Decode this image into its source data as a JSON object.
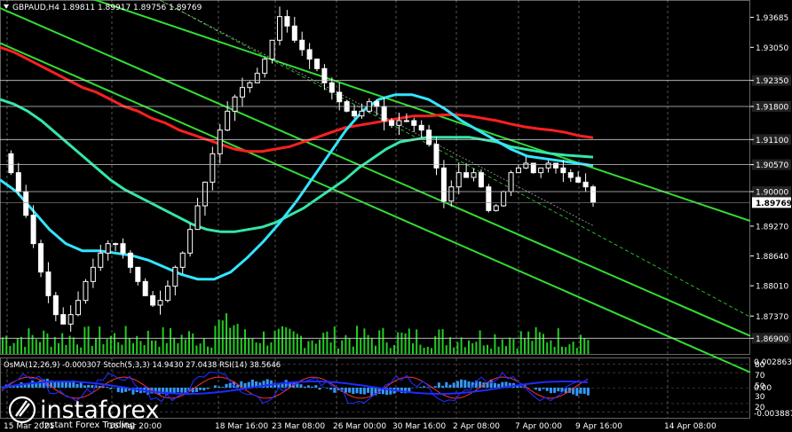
{
  "header": {
    "symbol_line": "GBPAUD,H4  1.89811 1.89917 1.89756 1.89769",
    "indicator_line": "OsMA(12,26,9) -0.000307  Stoch(5,3,3) 14.9430 27.0438  RSI(14) 38.5646"
  },
  "logo": {
    "brand": "instaforex",
    "tagline": "Instant Forex Trading"
  },
  "colors": {
    "background": "#000000",
    "candles": "#ffffff",
    "ema_slow": "#ff2020",
    "ema_mid": "#33e6a8",
    "ema_fast": "#33e6ff",
    "channel": "#33dd33",
    "volume": "#22cc22",
    "osma": "#3399ff",
    "stoch_main": "#1e2bff",
    "stoch_signal": "#ff3030",
    "rsi": "#ffffff",
    "grid": "#ffffff"
  },
  "chart_data": {
    "type": "line",
    "symbol": "GBPAUD",
    "timeframe": "H4",
    "ohlc": {
      "open": 1.89811,
      "high": 1.89917,
      "low": 1.89756,
      "close": 1.89769
    },
    "ylim": [
      1.8655,
      1.9405
    ],
    "y_ticks": [
      "1.93685",
      "1.93050",
      "1.92350",
      "1.91800",
      "1.91100",
      "1.90570",
      "1.90000",
      "1.89769",
      "1.89270",
      "1.88640",
      "1.88010",
      "1.87370",
      "1.86900"
    ],
    "highlighted_levels": [
      1.9235,
      1.918,
      1.911,
      1.9057,
      1.9,
      1.869
    ],
    "current_price": "1.89769",
    "x_tick_labels": [
      "15 Mar 2021",
      "16 Mar 20:00",
      "18 Mar 16:00",
      "23 Mar 08:00",
      "26 Mar 00:00",
      "30 Mar 16:00",
      "2 Apr 08:00",
      "7 Apr 00:00",
      "9 Apr 16:00",
      "14 Apr 08:00"
    ],
    "series": [
      {
        "name": "close",
        "values": [
          1.908,
          1.904,
          1.9,
          1.895,
          1.889,
          1.883,
          1.878,
          1.874,
          1.872,
          1.874,
          1.877,
          1.881,
          1.884,
          1.887,
          1.889,
          1.889,
          1.887,
          1.884,
          1.881,
          1.878,
          1.876,
          1.877,
          1.88,
          1.884,
          1.887,
          1.892,
          1.897,
          1.902,
          1.908,
          1.913,
          1.917,
          1.92,
          1.922,
          1.923,
          1.925,
          1.928,
          1.932,
          1.937,
          1.935,
          1.932,
          1.93,
          1.928,
          1.926,
          1.923,
          1.921,
          1.919,
          1.917,
          1.916,
          1.917,
          1.919,
          1.918,
          1.915,
          1.914,
          1.915,
          1.915,
          1.914,
          1.913,
          1.91,
          1.905,
          1.898,
          1.901,
          1.904,
          1.903,
          1.904,
          1.901,
          1.896,
          1.897,
          1.9,
          1.904,
          1.905,
          1.906,
          1.904,
          1.905,
          1.906,
          1.905,
          1.904,
          1.903,
          1.902,
          1.901,
          1.8977
        ]
      },
      {
        "name": "ema_slow",
        "values": [
          1.9305,
          1.9295,
          1.928,
          1.9265,
          1.925,
          1.9235,
          1.922,
          1.921,
          1.9195,
          1.918,
          1.917,
          1.9155,
          1.9145,
          1.913,
          1.912,
          1.911,
          1.91,
          1.909,
          1.9085,
          1.9085,
          1.909,
          1.9095,
          1.9105,
          1.9115,
          1.9125,
          1.9135,
          1.914,
          1.9145,
          1.915,
          1.9155,
          1.916,
          1.916,
          1.9162,
          1.9163,
          1.916,
          1.9155,
          1.915,
          1.9143,
          1.9137,
          1.9133,
          1.913,
          1.9125,
          1.9118,
          1.9114
        ]
      },
      {
        "name": "ema_mid",
        "values": [
          1.9195,
          1.9185,
          1.917,
          1.915,
          1.9125,
          1.91,
          1.9075,
          1.905,
          1.9025,
          1.9005,
          1.899,
          1.8975,
          1.896,
          1.8945,
          1.893,
          1.892,
          1.8915,
          1.8915,
          1.892,
          1.8925,
          1.8935,
          1.895,
          1.8965,
          1.8985,
          1.9005,
          1.9025,
          1.905,
          1.907,
          1.909,
          1.9105,
          1.911,
          1.9115,
          1.9115,
          1.9115,
          1.9115,
          1.911,
          1.9105,
          1.9095,
          1.909,
          1.9085,
          1.908,
          1.9077,
          1.9075,
          1.9073
        ]
      },
      {
        "name": "ema_fast",
        "values": [
          1.9025,
          1.9,
          1.896,
          1.892,
          1.889,
          1.8875,
          1.8875,
          1.887,
          1.8865,
          1.8855,
          1.884,
          1.8825,
          1.8815,
          1.8815,
          1.883,
          1.886,
          1.8895,
          1.8935,
          1.898,
          1.903,
          1.908,
          1.913,
          1.917,
          1.9195,
          1.9205,
          1.9205,
          1.9195,
          1.9175,
          1.915,
          1.913,
          1.911,
          1.909,
          1.9075,
          1.907,
          1.9065,
          1.906,
          1.9055
        ]
      }
    ],
    "channel_lines": [
      {
        "name": "upper",
        "from": [
          "left",
          1.9473
        ],
        "to": [
          "right",
          1.8938
        ]
      },
      {
        "name": "middle",
        "from": [
          "left",
          1.9388
        ],
        "to": [
          "right",
          1.8695
        ]
      },
      {
        "name": "lower",
        "from": [
          "left",
          1.9314
        ],
        "to": [
          "right",
          1.8618
        ]
      }
    ],
    "dashed_trend": {
      "from": [
        1.9405,
        1.8928
      ],
      "to": [
        1.9195,
        1.8735
      ]
    },
    "oscillators": {
      "osma": -0.000307,
      "stoch_main": 14.943,
      "stoch_signal": 27.0438,
      "rsi": 38.5646,
      "scale_labels": [
        "0.002863",
        "0.00",
        "-0.003887"
      ],
      "levels": [
        "80",
        "70",
        "50",
        "30",
        "20"
      ]
    }
  }
}
